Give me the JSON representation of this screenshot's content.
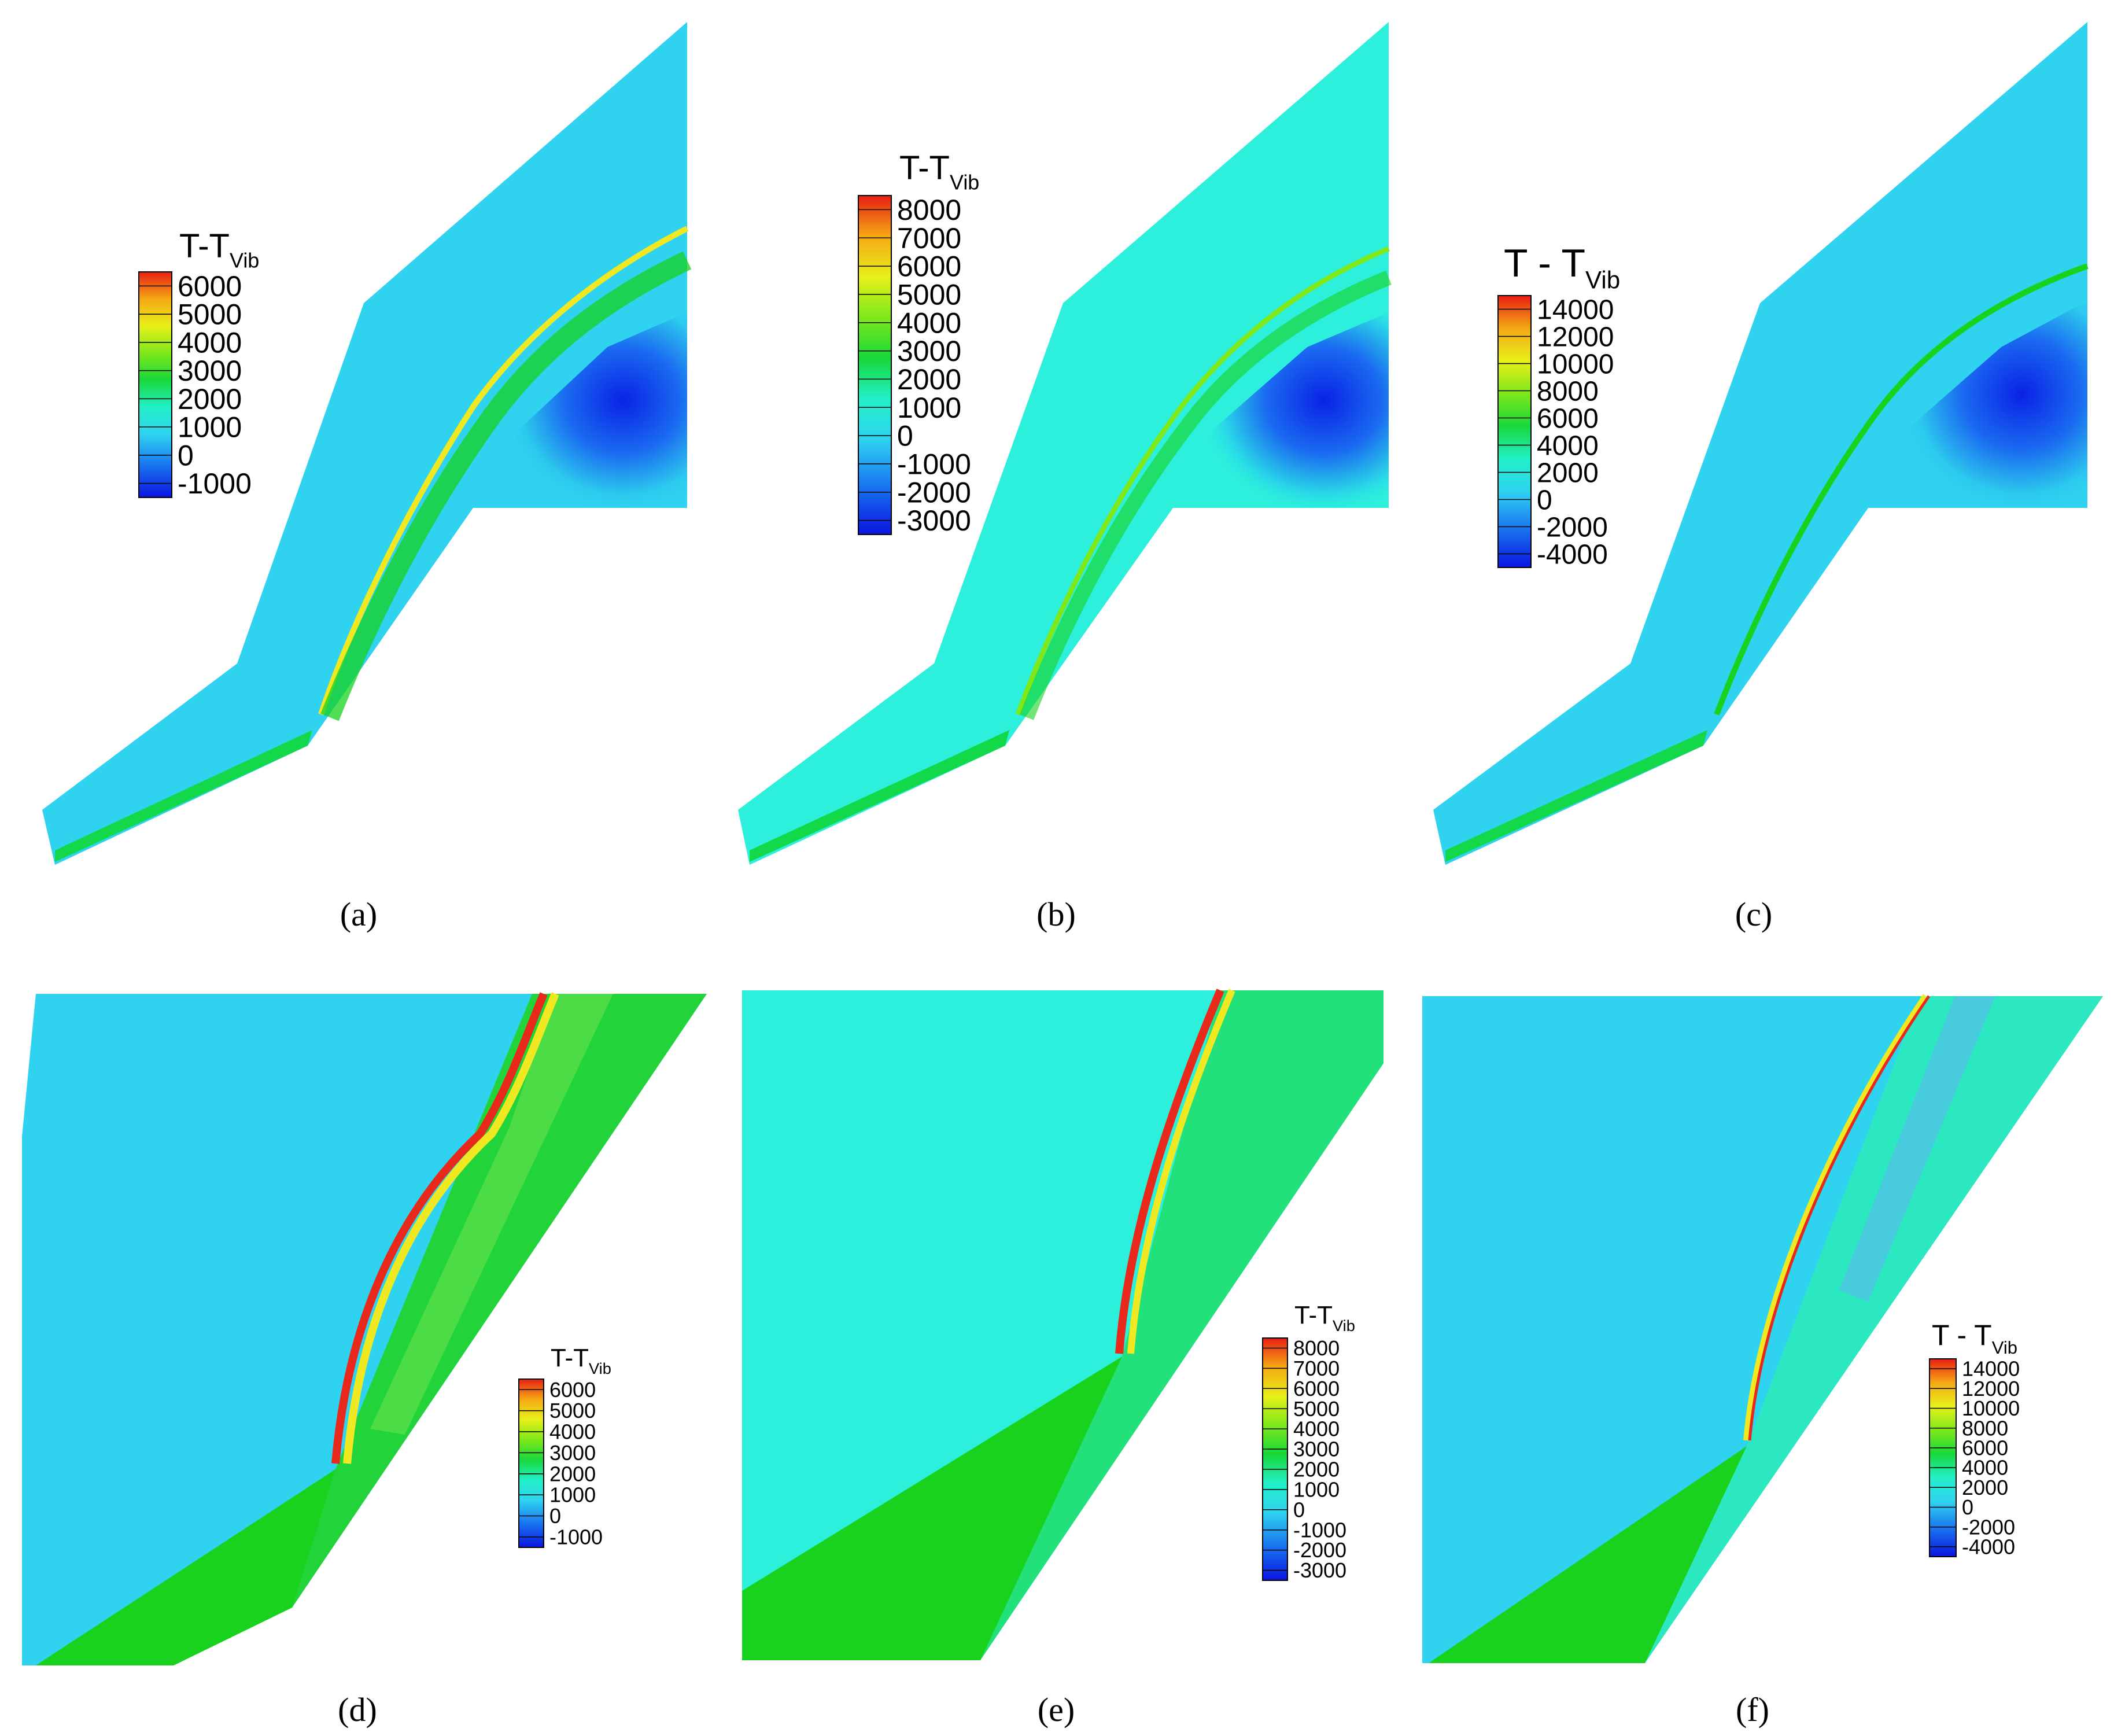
{
  "colors": {
    "freestream_a": "#2fd3f0",
    "freestream_b": "#2cf0dc",
    "cold_core": "#0a22e6",
    "shock_red": "#e8281a",
    "shock_green": "#18d21e",
    "boundary_layer": "#12d84a"
  },
  "panels": [
    {
      "id": "a",
      "caption": "(a)",
      "legend": {
        "title": "T-T",
        "subscript": "Vib",
        "ticks": [
          "6000",
          "5000",
          "4000",
          "3000",
          "2000",
          "1000",
          "0",
          "-1000"
        ],
        "min": -1500,
        "max": 6500
      }
    },
    {
      "id": "b",
      "caption": "(b)",
      "legend": {
        "title": "T-T",
        "subscript": "Vib",
        "ticks": [
          "8000",
          "7000",
          "6000",
          "5000",
          "4000",
          "3000",
          "2000",
          "1000",
          "0",
          "-1000",
          "-2000",
          "-3000"
        ],
        "min": -3500,
        "max": 8500
      }
    },
    {
      "id": "c",
      "caption": "(c)",
      "legend": {
        "title": "T - T",
        "subscript": "Vib",
        "ticks": [
          "14000",
          "12000",
          "10000",
          "8000",
          "6000",
          "4000",
          "2000",
          "0",
          "-2000",
          "-4000"
        ],
        "min": -5000,
        "max": 15000
      }
    },
    {
      "id": "d",
      "caption": "(d)",
      "legend": {
        "title": "T-T",
        "subscript": "Vib",
        "ticks": [
          "6000",
          "5000",
          "4000",
          "3000",
          "2000",
          "1000",
          "0",
          "-1000"
        ],
        "min": -1500,
        "max": 6500
      }
    },
    {
      "id": "e",
      "caption": "(e)",
      "legend": {
        "title": "T-T",
        "subscript": "Vib",
        "ticks": [
          "8000",
          "7000",
          "6000",
          "5000",
          "4000",
          "3000",
          "2000",
          "1000",
          "0",
          "-1000",
          "-2000",
          "-3000"
        ],
        "min": -3500,
        "max": 8500
      }
    },
    {
      "id": "f",
      "caption": "(f)",
      "legend": {
        "title": "T - T",
        "subscript": "Vib",
        "ticks": [
          "14000",
          "12000",
          "10000",
          "8000",
          "6000",
          "4000",
          "2000",
          "0",
          "-2000",
          "-4000"
        ],
        "min": -5000,
        "max": 15000
      }
    }
  ]
}
